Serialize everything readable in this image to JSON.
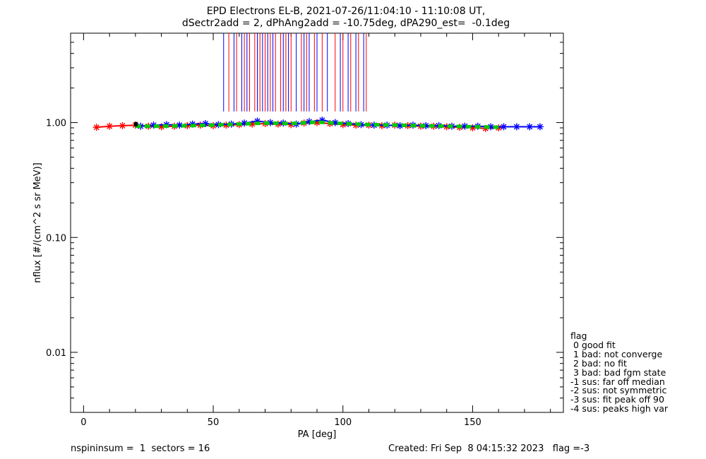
{
  "title_line1": "EPD Electrons EL-B, 2021-07-26/11:04:10 - 11:10:08 UT,",
  "title_line2": "dSectr2add = 2, dPhAng2add = -10.75deg, dPA290_est=  -0.1deg",
  "footer_left": "nspininsum =  1  sectors = 16",
  "footer_right": "Created: Fri Sep  8 04:15:32 2023   flag =-3",
  "legend": {
    "title": "flag",
    "items": [
      " 0 good fit",
      " 1 bad: not converge",
      " 2 bad: no fit",
      " 3 bad: bad fgm state",
      "-1 sus: far off median",
      "-2 sus: not symmetric",
      "-3 sus: fit peak off 90",
      "-4 sus: peaks high var"
    ]
  },
  "colors": {
    "red": "#ff0000",
    "blue": "#0000ff",
    "green": "#00cc00",
    "black": "#000000"
  },
  "chart_data": {
    "type": "scatter",
    "xlabel": "PA [deg]",
    "ylabel": "nflux [#/(cm^2 s sr MeV)]",
    "xlim": [
      -5,
      185
    ],
    "ylim": [
      0.003,
      6
    ],
    "yscale": "log",
    "x_ticks": [
      0,
      50,
      100,
      150
    ],
    "x_tick_labels": [
      "0",
      "50",
      "100",
      "150"
    ],
    "y_ticks": [
      0.01,
      0.1,
      1.0
    ],
    "y_tick_labels": [
      "0.01",
      "0.10",
      "1.00"
    ],
    "series": [
      {
        "color": "#ff0000",
        "marker": "asterisk",
        "x": [
          5,
          10,
          15,
          20,
          25,
          30,
          35,
          40,
          45,
          50,
          55,
          60,
          65,
          70,
          75,
          80,
          85,
          90,
          95,
          100,
          105,
          110,
          115,
          120,
          125,
          130,
          135,
          140,
          145,
          150,
          155,
          160
        ],
        "y": [
          0.91,
          0.93,
          0.94,
          0.95,
          0.93,
          0.92,
          0.93,
          0.94,
          0.95,
          0.94,
          0.95,
          0.96,
          0.97,
          0.98,
          0.97,
          0.96,
          0.99,
          1.0,
          0.98,
          0.96,
          0.95,
          0.95,
          0.94,
          0.95,
          0.94,
          0.93,
          0.93,
          0.92,
          0.91,
          0.9,
          0.89,
          0.9
        ]
      },
      {
        "color": "#0000ff",
        "marker": "asterisk",
        "x": [
          22,
          27,
          32,
          37,
          42,
          47,
          52,
          57,
          62,
          67,
          72,
          77,
          82,
          87,
          92,
          97,
          102,
          107,
          112,
          117,
          122,
          127,
          132,
          137,
          142,
          147,
          152,
          157,
          162,
          167,
          172,
          176
        ],
        "y": [
          0.93,
          0.95,
          0.96,
          0.95,
          0.97,
          0.98,
          0.96,
          0.97,
          0.99,
          1.03,
          1.0,
          0.99,
          0.97,
          1.02,
          1.05,
          1.0,
          0.98,
          0.96,
          0.95,
          0.95,
          0.94,
          0.95,
          0.94,
          0.94,
          0.93,
          0.93,
          0.93,
          0.92,
          0.92,
          0.92,
          0.92,
          0.92
        ]
      },
      {
        "color": "#00cc00",
        "marker": "dashed-line",
        "x": [
          20,
          30,
          40,
          50,
          60,
          70,
          80,
          90,
          100,
          110,
          120,
          130,
          140,
          150,
          160
        ],
        "y": [
          0.93,
          0.93,
          0.94,
          0.95,
          0.97,
          0.99,
          0.98,
          1.01,
          0.98,
          0.96,
          0.95,
          0.94,
          0.93,
          0.92,
          0.91
        ]
      }
    ],
    "vertical_lines": {
      "ymin": 1.25,
      "ymax": 6,
      "red_x": [
        56,
        59,
        62,
        64,
        66,
        68,
        70,
        72,
        74,
        76,
        78,
        80,
        84,
        86,
        89,
        92,
        97,
        100,
        103,
        106,
        109
      ],
      "blue_x": [
        54,
        58,
        61,
        63,
        67,
        69,
        71,
        73,
        77,
        79,
        82,
        85,
        87,
        90,
        94,
        99,
        102,
        105,
        108
      ]
    }
  }
}
